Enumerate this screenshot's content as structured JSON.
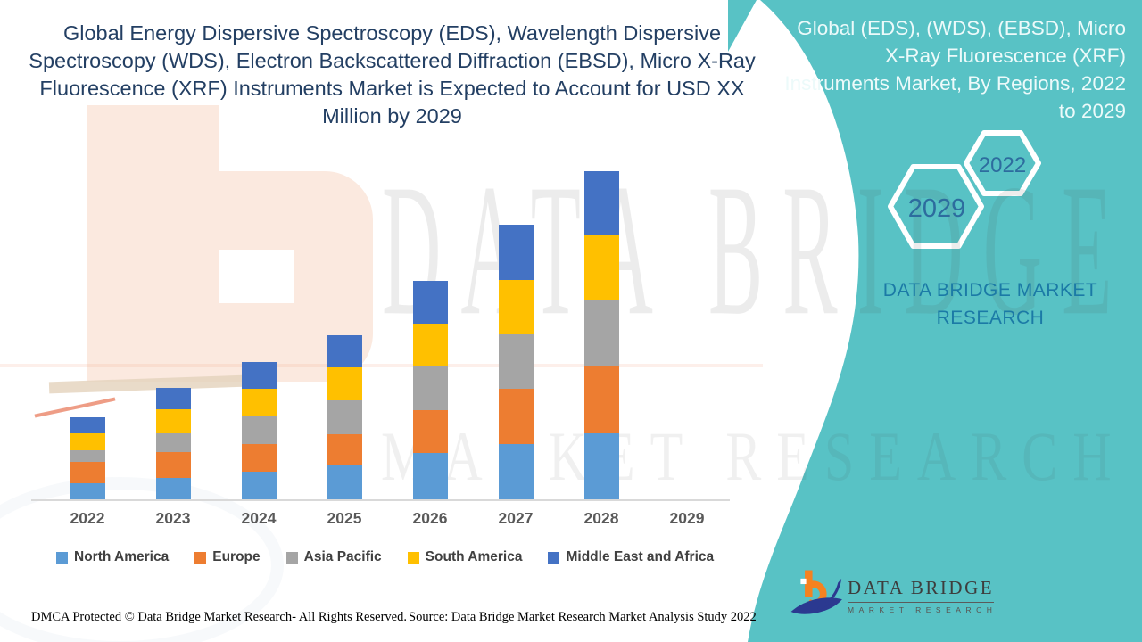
{
  "header": {
    "title": "Global Energy Dispersive Spectroscopy (EDS), Wavelength Dispersive Spectroscopy (WDS), Electron Backscattered Diffraction (EBSD), Micro X-Ray Fluorescence (XRF) Instruments Market is Expected to Account for USD XX Million by 2029",
    "title_color": "#233F63"
  },
  "right_panel": {
    "background": "#58C2C5",
    "title": "Global (EDS), (WDS), (EBSD), Micro X-Ray Fluorescence (XRF) Instruments Market, By Regions, 2022 to 2029",
    "hexagon_top_year": "2022",
    "hexagon_bottom_year": "2029",
    "hexagon_year_color": "#2D6C9E",
    "brand_caption": "DATA BRIDGE MARKET RESEARCH",
    "brand_caption_color": "#1B7AA6"
  },
  "chart_data": {
    "type": "bar",
    "stacked": true,
    "title": "",
    "xlabel": "",
    "ylabel": "",
    "value_note": "USD XX Million (y-axis unlabeled; values estimated in relative units)",
    "ylim": [
      0,
      400
    ],
    "grid": false,
    "legend_position": "bottom",
    "axis_line_color": "#D9D9D9",
    "tick_label_color": "#595959",
    "categories": [
      "2022",
      "2023",
      "2024",
      "2025",
      "2026",
      "2027",
      "2028",
      "2029"
    ],
    "series": [
      {
        "name": "North America",
        "color": "#5B9BD5",
        "values": [
          18,
          24,
          31,
          38,
          52,
          62,
          74,
          0
        ]
      },
      {
        "name": "Europe",
        "color": "#ED7D31",
        "values": [
          24,
          29,
          31,
          35,
          48,
          62,
          76,
          0
        ]
      },
      {
        "name": "Asia Pacific",
        "color": "#A5A5A5",
        "values": [
          13,
          21,
          31,
          38,
          49,
          61,
          73,
          0
        ]
      },
      {
        "name": "South America",
        "color": "#FFC000",
        "values": [
          19,
          27,
          31,
          37,
          48,
          61,
          74,
          0
        ]
      },
      {
        "name": "Middle East and Africa",
        "color": "#4472C4",
        "values": [
          18,
          24,
          30,
          36,
          48,
          62,
          71,
          0
        ]
      }
    ]
  },
  "watermark": {
    "line1": "DATA BRIDGE",
    "line2": "MARKET RESEARCH"
  },
  "footer": {
    "dmca": "DMCA Protected © Data Bridge Market Research- All Rights Reserved.",
    "source": "Source: Data Bridge Market Research Market Analysis Study 2022"
  },
  "logo": {
    "name": "DATA BRIDGE",
    "sub": "MARKET RESEARCH",
    "orange": "#F58220",
    "navy": "#2B3990"
  }
}
